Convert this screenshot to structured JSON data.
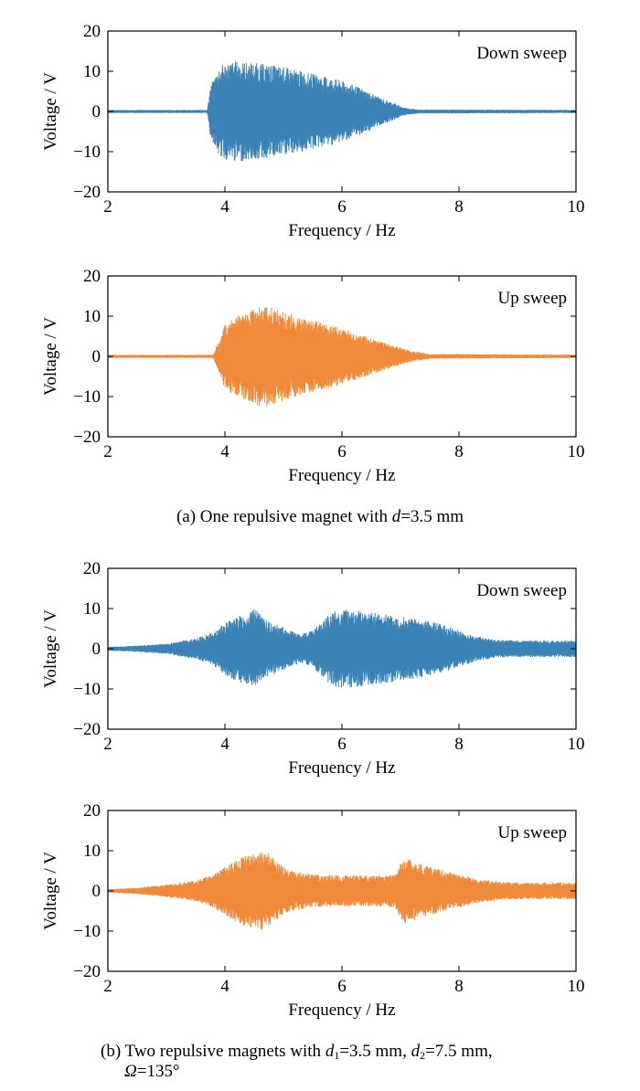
{
  "chart_data": [
    {
      "type": "line",
      "panel": "a-top",
      "annotation": "Down sweep",
      "xlabel": "Frequency / Hz",
      "ylabel": "Voltage / V",
      "xlim": [
        2,
        10
      ],
      "ylim": [
        -20,
        20
      ],
      "xticks": [
        "2",
        "4",
        "6",
        "8",
        "10"
      ],
      "yticks": [
        "−20",
        "−10",
        "0",
        "10",
        "20"
      ],
      "color": "#3b82b6",
      "envelope": {
        "x": [
          2.0,
          3.7,
          3.75,
          3.9,
          4.0,
          4.2,
          4.5,
          4.8,
          5.0,
          5.3,
          5.6,
          5.9,
          6.2,
          6.5,
          6.7,
          6.9,
          7.0,
          7.1,
          7.3,
          10.0
        ],
        "amplitude": [
          0.3,
          0.3,
          6.0,
          11.0,
          12.0,
          12.5,
          12.0,
          11.5,
          11.0,
          10.0,
          9.0,
          8.0,
          6.5,
          4.5,
          3.0,
          2.0,
          1.2,
          0.8,
          0.4,
          0.3
        ]
      }
    },
    {
      "type": "line",
      "panel": "a-bottom",
      "annotation": "Up sweep",
      "xlabel": "Frequency / Hz",
      "ylabel": "Voltage / V",
      "xlim": [
        2,
        10
      ],
      "ylim": [
        -20,
        20
      ],
      "xticks": [
        "2",
        "4",
        "6",
        "8",
        "10"
      ],
      "yticks": [
        "−20",
        "−10",
        "0",
        "10",
        "20"
      ],
      "color": "#f08a3a",
      "envelope": {
        "x": [
          2.0,
          3.8,
          3.9,
          4.0,
          4.3,
          4.6,
          4.8,
          5.0,
          5.3,
          5.6,
          6.0,
          6.3,
          6.6,
          6.9,
          7.2,
          7.5,
          10.0
        ],
        "amplitude": [
          0.3,
          0.3,
          4.0,
          8.0,
          11.0,
          12.5,
          12.0,
          11.0,
          9.5,
          8.5,
          7.0,
          5.5,
          4.0,
          2.5,
          1.2,
          0.5,
          0.3
        ]
      }
    },
    {
      "type": "line",
      "panel": "b-top",
      "annotation": "Down sweep",
      "xlabel": "Frequency / Hz",
      "ylabel": "Voltage / V",
      "xlim": [
        2,
        10
      ],
      "ylim": [
        -20,
        20
      ],
      "xticks": [
        "2",
        "4",
        "6",
        "8",
        "10"
      ],
      "yticks": [
        "−20",
        "−10",
        "0",
        "10",
        "20"
      ],
      "color": "#3b82b6",
      "envelope": {
        "x": [
          2.0,
          2.5,
          3.0,
          3.5,
          3.8,
          4.0,
          4.2,
          4.4,
          4.5,
          4.7,
          4.9,
          5.1,
          5.3,
          5.5,
          5.7,
          5.9,
          6.2,
          6.5,
          6.8,
          7.2,
          7.6,
          8.0,
          8.3,
          8.6,
          9.0,
          10.0
        ],
        "amplitude": [
          0.4,
          0.7,
          1.2,
          2.5,
          4.0,
          6.5,
          8.0,
          9.0,
          10.0,
          7.0,
          6.0,
          4.5,
          3.5,
          4.5,
          7.5,
          10.0,
          9.5,
          9.0,
          8.5,
          7.5,
          6.5,
          4.5,
          3.0,
          2.2,
          2.0,
          2.0
        ]
      }
    },
    {
      "type": "line",
      "panel": "b-bottom",
      "annotation": "Up sweep",
      "xlabel": "Frequency / Hz",
      "ylabel": "Voltage / V",
      "xlim": [
        2,
        10
      ],
      "ylim": [
        -20,
        20
      ],
      "xticks": [
        "2",
        "4",
        "6",
        "8",
        "10"
      ],
      "yticks": [
        "−20",
        "−10",
        "0",
        "10",
        "20"
      ],
      "color": "#f08a3a",
      "envelope": {
        "x": [
          2.0,
          2.5,
          3.0,
          3.5,
          3.8,
          4.0,
          4.3,
          4.6,
          4.7,
          4.9,
          5.1,
          5.5,
          6.0,
          6.5,
          6.9,
          7.0,
          7.1,
          7.3,
          7.6,
          8.0,
          8.3,
          8.6,
          9.0,
          10.0
        ],
        "amplitude": [
          0.3,
          0.7,
          1.5,
          2.5,
          4.0,
          6.0,
          8.5,
          9.5,
          10.0,
          7.0,
          5.0,
          4.0,
          3.8,
          3.8,
          4.0,
          7.0,
          8.0,
          7.0,
          5.5,
          4.0,
          3.0,
          2.3,
          2.0,
          2.0
        ]
      }
    }
  ],
  "captions": {
    "a": {
      "prefix": "(a) One repulsive magnet with ",
      "var": "d",
      "suffix": "=3.5 mm"
    },
    "b": {
      "prefix": "(b) Two repulsive magnets with ",
      "var1": "d",
      "sub1": "1",
      "mid1": "=3.5 mm, ",
      "var2": "d",
      "sub2": "2",
      "mid2": "=7.5 mm,",
      "var3": "Ω",
      "suffix": "=135°"
    }
  }
}
